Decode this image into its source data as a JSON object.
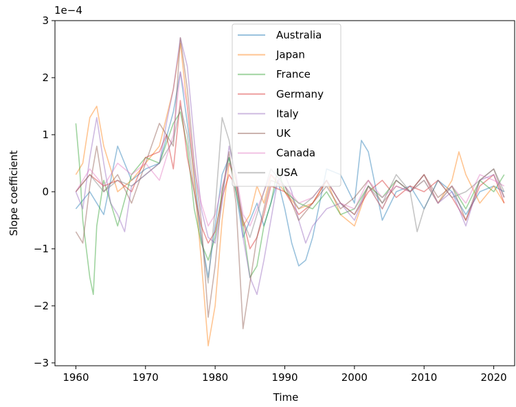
{
  "chart_data": {
    "type": "line",
    "title": "",
    "xlabel": "Time",
    "ylabel": "Slope coefficient",
    "y_offset_label": "1e−4",
    "xlim": [
      1957,
      2023
    ],
    "ylim": [
      -3.05,
      3.0
    ],
    "x_ticks": [
      1960,
      1970,
      1980,
      1990,
      2000,
      2010,
      2020
    ],
    "y_ticks": [
      -3,
      -2,
      -1,
      0,
      1,
      2,
      3
    ],
    "x_tick_labels": [
      "1960",
      "1970",
      "1980",
      "1990",
      "2000",
      "2010",
      "2020"
    ],
    "y_tick_labels": [
      "−3",
      "−2",
      "−1",
      "0",
      "1",
      "2",
      "3"
    ],
    "grid": false,
    "legend_position": "upper center",
    "line_alpha": 0.45,
    "series": [
      {
        "name": "Australia",
        "color": "#1f77b4",
        "x": [
          1960,
          1962,
          1964,
          1966,
          1968,
          1970,
          1972,
          1974,
          1975,
          1976,
          1977,
          1978,
          1979,
          1980,
          1981,
          1982,
          1983,
          1984,
          1985,
          1986,
          1987,
          1988,
          1989,
          1990,
          1991,
          1992,
          1993,
          1994,
          1995,
          1996,
          1998,
          2000,
          2001,
          2002,
          2004,
          2006,
          2008,
          2010,
          2012,
          2014,
          2016,
          2018,
          2020,
          2021.5
        ],
        "values": [
          -0.3,
          0.0,
          -0.4,
          0.8,
          0.2,
          0.4,
          0.5,
          1.4,
          2.1,
          1.2,
          0.3,
          -0.8,
          -1.5,
          -0.6,
          0.3,
          0.6,
          0.0,
          -0.8,
          -0.5,
          -0.2,
          -0.6,
          -0.2,
          0.2,
          -0.3,
          -0.9,
          -1.3,
          -1.2,
          -0.8,
          -0.2,
          0.4,
          0.3,
          -0.2,
          0.9,
          0.7,
          -0.5,
          0.0,
          0.1,
          -0.3,
          0.2,
          0.0,
          -0.4,
          0.0,
          0.1,
          0.0
        ]
      },
      {
        "name": "Japan",
        "color": "#ff7f0e",
        "x": [
          1960,
          1961,
          1962,
          1963,
          1964,
          1966,
          1968,
          1970,
          1972,
          1974,
          1975,
          1976,
          1977,
          1978,
          1979,
          1980,
          1981,
          1982,
          1983,
          1984,
          1985,
          1986,
          1987,
          1988,
          1990,
          1992,
          1994,
          1996,
          1998,
          2000,
          2002,
          2004,
          2006,
          2008,
          2010,
          2012,
          2014,
          2015,
          2016,
          2018,
          2020,
          2021.5
        ],
        "values": [
          0.3,
          0.5,
          1.3,
          1.5,
          0.8,
          0.0,
          0.2,
          0.5,
          0.8,
          1.8,
          2.6,
          1.5,
          0.2,
          -1.2,
          -2.7,
          -2.0,
          -0.5,
          0.5,
          0.2,
          -0.6,
          -0.4,
          0.1,
          -0.2,
          0.3,
          0.0,
          -0.3,
          -0.2,
          0.2,
          -0.4,
          -0.6,
          0.1,
          -0.3,
          0.2,
          0.0,
          0.3,
          -0.2,
          0.2,
          0.7,
          0.3,
          -0.2,
          0.1,
          -0.2
        ]
      },
      {
        "name": "France",
        "color": "#2ca02c",
        "x": [
          1960,
          1960.5,
          1961,
          1961.5,
          1962,
          1962.5,
          1963,
          1964,
          1966,
          1968,
          1970,
          1972,
          1974,
          1975,
          1976,
          1977,
          1978,
          1979,
          1980,
          1981,
          1982,
          1983,
          1984,
          1985,
          1986,
          1987,
          1988,
          1989,
          1990,
          1992,
          1994,
          1996,
          1998,
          2000,
          2002,
          2004,
          2006,
          2008,
          2010,
          2012,
          2014,
          2016,
          2018,
          2020,
          2021.5
        ],
        "values": [
          1.2,
          0.5,
          -0.5,
          -1.0,
          -1.5,
          -1.8,
          -0.6,
          0.2,
          -0.6,
          0.3,
          0.6,
          0.5,
          1.2,
          1.4,
          0.8,
          -0.3,
          -0.9,
          -1.2,
          -0.8,
          0.0,
          0.6,
          0.0,
          -0.6,
          -1.5,
          -1.3,
          -0.6,
          -0.2,
          0.4,
          0.0,
          -0.2,
          -0.3,
          0.0,
          -0.4,
          -0.3,
          0.1,
          -0.1,
          0.2,
          0.0,
          0.2,
          -0.2,
          0.1,
          -0.3,
          0.2,
          0.0,
          0.3
        ]
      },
      {
        "name": "Germany",
        "color": "#d62728",
        "x": [
          1960,
          1962,
          1964,
          1966,
          1968,
          1970,
          1972,
          1973,
          1974,
          1975,
          1976,
          1977,
          1978,
          1979,
          1980,
          1981,
          1982,
          1983,
          1984,
          1985,
          1986,
          1987,
          1988,
          1990,
          1992,
          1994,
          1996,
          1998,
          2000,
          2002,
          2004,
          2006,
          2008,
          2010,
          2012,
          2014,
          2016,
          2018,
          2020,
          2021.5
        ],
        "values": [
          0.0,
          0.3,
          0.1,
          0.2,
          0.0,
          0.6,
          0.7,
          1.0,
          0.4,
          1.6,
          0.6,
          0.0,
          -0.6,
          -0.9,
          -0.7,
          -0.1,
          0.3,
          0.1,
          -0.5,
          -1.0,
          -0.8,
          -0.4,
          0.1,
          0.0,
          -0.4,
          -0.2,
          0.2,
          -0.2,
          -0.4,
          0.0,
          0.2,
          -0.1,
          0.1,
          0.0,
          0.2,
          -0.1,
          -0.5,
          0.1,
          0.3,
          -0.2
        ]
      },
      {
        "name": "Italy",
        "color": "#9467bd",
        "x": [
          1960,
          1961,
          1962,
          1963,
          1964,
          1965,
          1966,
          1967,
          1968,
          1970,
          1972,
          1973,
          1974,
          1975,
          1976,
          1977,
          1978,
          1979,
          1980,
          1981,
          1982,
          1983,
          1984,
          1985,
          1986,
          1987,
          1988,
          1989,
          1990,
          1991,
          1992,
          1993,
          1994,
          1996,
          1998,
          2000,
          2002,
          2004,
          2006,
          2008,
          2010,
          2012,
          2014,
          2016,
          2018,
          2020,
          2021.5
        ],
        "values": [
          0.0,
          -0.3,
          0.6,
          1.3,
          0.5,
          -0.2,
          -0.4,
          -0.7,
          0.1,
          0.3,
          0.5,
          1.2,
          1.8,
          2.7,
          2.2,
          0.9,
          -0.3,
          -0.8,
          -0.9,
          -0.2,
          0.8,
          0.3,
          -0.8,
          -1.5,
          -1.8,
          -1.2,
          -0.5,
          0.2,
          0.3,
          0.0,
          -0.5,
          -0.9,
          -0.6,
          -0.3,
          -0.2,
          -0.5,
          0.1,
          -0.3,
          0.2,
          0.0,
          0.3,
          -0.2,
          0.0,
          -0.6,
          0.2,
          0.3,
          -0.1
        ]
      },
      {
        "name": "UK",
        "color": "#8c564b",
        "x": [
          1960,
          1961,
          1962,
          1963,
          1964,
          1966,
          1968,
          1970,
          1972,
          1974,
          1975,
          1976,
          1977,
          1978,
          1979,
          1980,
          1981,
          1982,
          1983,
          1984,
          1985,
          1986,
          1987,
          1988,
          1990,
          1992,
          1994,
          1996,
          1998,
          2000,
          2002,
          2004,
          2006,
          2008,
          2010,
          2012,
          2014,
          2016,
          2018,
          2020,
          2021.5
        ],
        "values": [
          -0.7,
          -0.9,
          0.1,
          0.8,
          0.0,
          0.3,
          -0.2,
          0.5,
          1.2,
          0.8,
          2.7,
          1.8,
          0.5,
          -0.5,
          -2.2,
          -1.3,
          0.0,
          0.7,
          -0.2,
          -2.4,
          -1.6,
          -0.8,
          -0.3,
          0.2,
          0.1,
          -0.5,
          -0.2,
          0.1,
          -0.3,
          -0.1,
          0.2,
          -0.2,
          0.1,
          0.0,
          0.3,
          -0.1,
          0.1,
          -0.5,
          0.2,
          0.4,
          -0.1
        ]
      },
      {
        "name": "Canada",
        "color": "#e377c2",
        "x": [
          1960,
          1962,
          1964,
          1966,
          1968,
          1970,
          1972,
          1974,
          1975,
          1976,
          1977,
          1978,
          1979,
          1980,
          1981,
          1982,
          1983,
          1984,
          1985,
          1986,
          1987,
          1988,
          1990,
          1992,
          1994,
          1996,
          1998,
          2000,
          2002,
          2004,
          2006,
          2008,
          2010,
          2012,
          2014,
          2016,
          2018,
          2020,
          2021.5
        ],
        "values": [
          0.0,
          0.4,
          0.1,
          0.5,
          0.3,
          0.5,
          0.2,
          1.0,
          2.1,
          1.5,
          0.4,
          -0.2,
          -0.6,
          -0.4,
          0.1,
          0.5,
          0.3,
          -0.4,
          -0.6,
          -0.3,
          0.0,
          0.3,
          0.1,
          -0.2,
          -0.1,
          0.2,
          -0.2,
          -0.3,
          0.2,
          -0.1,
          0.1,
          0.0,
          0.2,
          -0.2,
          0.1,
          -0.2,
          0.3,
          0.2,
          0.1
        ]
      },
      {
        "name": "USA",
        "color": "#7f7f7f",
        "x": [
          1960,
          1962,
          1964,
          1966,
          1968,
          1970,
          1972,
          1974,
          1975,
          1976,
          1977,
          1978,
          1979,
          1980,
          1981,
          1982,
          1983,
          1984,
          1985,
          1986,
          1987,
          1988,
          1990,
          1992,
          1994,
          1996,
          1998,
          2000,
          2002,
          2004,
          2006,
          2008,
          2009,
          2010,
          2012,
          2014,
          2016,
          2018,
          2020,
          2021.5
        ],
        "values": [
          0.0,
          0.3,
          0.0,
          0.2,
          0.1,
          0.3,
          0.5,
          0.9,
          1.5,
          1.0,
          0.0,
          -0.8,
          -1.6,
          -0.3,
          1.3,
          0.9,
          0.2,
          -0.5,
          -0.8,
          -0.4,
          0.0,
          0.4,
          0.1,
          -0.3,
          -0.1,
          0.2,
          -0.2,
          -0.4,
          0.1,
          -0.2,
          0.3,
          0.0,
          -0.7,
          -0.3,
          0.2,
          -0.1,
          0.0,
          0.2,
          0.4,
          0.0
        ]
      }
    ]
  }
}
